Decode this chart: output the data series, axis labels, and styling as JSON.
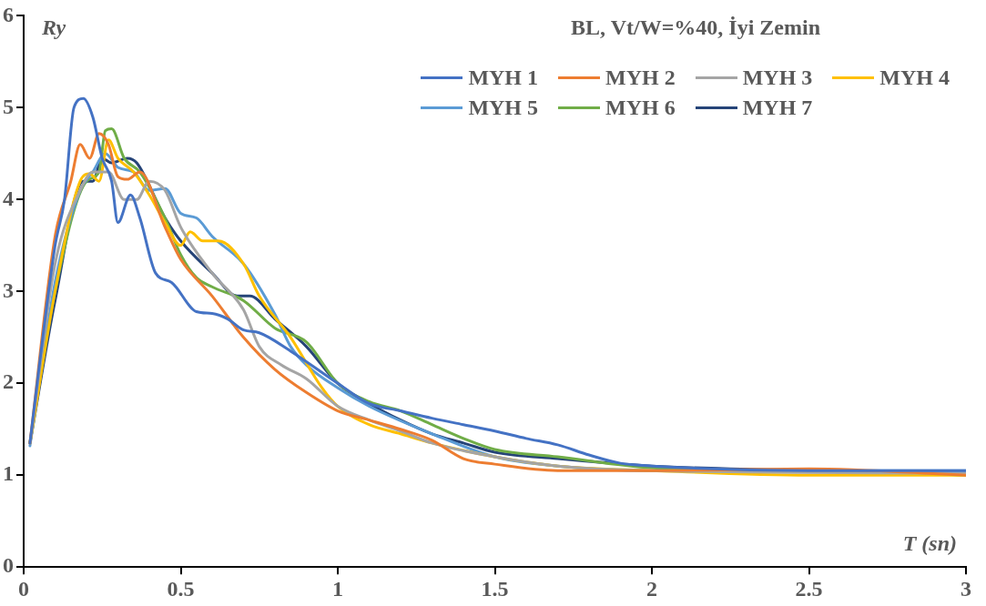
{
  "chart_data": {
    "type": "line",
    "title": "BL, Vt/W=%40, İyi Zemin",
    "xlabel": "T (sn)",
    "ylabel": "Ry",
    "xlim": [
      0,
      3
    ],
    "xticks": [
      0,
      0.5,
      1,
      1.5,
      2,
      2.5,
      3
    ],
    "ylim": [
      0,
      6
    ],
    "yticks": [
      0,
      1,
      2,
      3,
      4,
      5,
      6
    ],
    "grid": false,
    "legend": "top right",
    "marker": "none",
    "line_style": "solid",
    "series": [
      {
        "name": "MYH 1",
        "color": "#4472c4",
        "x": [
          0.02,
          0.05,
          0.1,
          0.13,
          0.16,
          0.19,
          0.22,
          0.25,
          0.28,
          0.3,
          0.34,
          0.37,
          0.42,
          0.47,
          0.55,
          0.6,
          0.65,
          0.7,
          0.75,
          0.85,
          1.0,
          1.1,
          1.2,
          1.3,
          1.4,
          1.5,
          1.6,
          1.7,
          1.8,
          1.9,
          2.0,
          2.5,
          3.0
        ],
        "values": [
          1.35,
          2.2,
          3.5,
          4.0,
          5.0,
          5.1,
          4.9,
          4.45,
          4.2,
          3.75,
          4.05,
          3.8,
          3.2,
          3.1,
          2.78,
          2.76,
          2.7,
          2.58,
          2.55,
          2.35,
          2.0,
          1.78,
          1.7,
          1.62,
          1.55,
          1.48,
          1.4,
          1.33,
          1.22,
          1.13,
          1.1,
          1.05,
          1.05
        ]
      },
      {
        "name": "MYH 2",
        "color": "#ed7d31",
        "x": [
          0.02,
          0.1,
          0.15,
          0.18,
          0.21,
          0.24,
          0.27,
          0.3,
          0.33,
          0.37,
          0.45,
          0.5,
          0.6,
          0.7,
          0.8,
          0.9,
          1.0,
          1.1,
          1.2,
          1.3,
          1.4,
          1.5,
          1.7,
          2.0,
          2.5,
          3.0
        ],
        "values": [
          1.35,
          3.6,
          4.2,
          4.6,
          4.45,
          4.72,
          4.6,
          4.25,
          4.22,
          4.3,
          3.7,
          3.35,
          2.95,
          2.5,
          2.15,
          1.9,
          1.7,
          1.6,
          1.5,
          1.38,
          1.18,
          1.12,
          1.05,
          1.05,
          1.07,
          1.0
        ]
      },
      {
        "name": "MYH 3",
        "color": "#a5a5a5",
        "x": [
          0.02,
          0.1,
          0.18,
          0.22,
          0.27,
          0.32,
          0.36,
          0.4,
          0.45,
          0.5,
          0.6,
          0.7,
          0.75,
          0.82,
          0.9,
          1.0,
          1.1,
          1.2,
          1.3,
          1.5,
          1.7,
          2.0,
          3.0
        ],
        "values": [
          1.35,
          3.3,
          4.1,
          4.3,
          4.3,
          4.0,
          4.0,
          4.2,
          4.1,
          3.7,
          3.2,
          2.8,
          2.4,
          2.2,
          2.05,
          1.75,
          1.6,
          1.48,
          1.35,
          1.2,
          1.1,
          1.05,
          1.02
        ]
      },
      {
        "name": "MYH 4",
        "color": "#ffc000",
        "x": [
          0.02,
          0.1,
          0.18,
          0.21,
          0.24,
          0.27,
          0.3,
          0.35,
          0.4,
          0.45,
          0.5,
          0.53,
          0.57,
          0.62,
          0.7,
          0.75,
          0.85,
          0.95,
          1.0,
          1.1,
          1.2,
          1.3,
          1.5,
          1.7,
          2.0,
          2.5,
          3.0
        ],
        "values": [
          1.35,
          3.0,
          4.2,
          4.28,
          4.2,
          4.65,
          4.45,
          4.3,
          4.05,
          3.75,
          3.5,
          3.65,
          3.55,
          3.55,
          3.3,
          2.95,
          2.5,
          1.95,
          1.75,
          1.55,
          1.45,
          1.35,
          1.2,
          1.1,
          1.05,
          1.0,
          1.0
        ]
      },
      {
        "name": "MYH 5",
        "color": "#5b9bd5",
        "x": [
          0.02,
          0.1,
          0.18,
          0.22,
          0.26,
          0.3,
          0.35,
          0.4,
          0.45,
          0.5,
          0.55,
          0.6,
          0.7,
          0.8,
          0.85,
          0.9,
          1.0,
          1.1,
          1.3,
          1.5,
          1.7,
          2.0,
          3.0
        ],
        "values": [
          1.32,
          3.1,
          4.1,
          4.3,
          4.5,
          4.35,
          4.3,
          4.1,
          4.12,
          3.85,
          3.8,
          3.6,
          3.3,
          2.75,
          2.4,
          2.2,
          1.95,
          1.75,
          1.45,
          1.2,
          1.1,
          1.05,
          1.05
        ]
      },
      {
        "name": "MYH 6",
        "color": "#70ad47",
        "x": [
          0.02,
          0.1,
          0.2,
          0.24,
          0.26,
          0.28,
          0.32,
          0.37,
          0.45,
          0.5,
          0.55,
          0.6,
          0.7,
          0.8,
          0.9,
          1.0,
          1.1,
          1.2,
          1.3,
          1.4,
          1.5,
          1.7,
          2.0,
          2.5,
          3.0
        ],
        "values": [
          1.35,
          3.0,
          4.2,
          4.3,
          4.75,
          4.77,
          4.45,
          4.3,
          3.8,
          3.4,
          3.15,
          3.05,
          2.9,
          2.6,
          2.45,
          2.0,
          1.8,
          1.7,
          1.55,
          1.4,
          1.28,
          1.2,
          1.08,
          1.05,
          1.0
        ]
      },
      {
        "name": "MYH 7",
        "color": "#264478",
        "x": [
          0.02,
          0.1,
          0.19,
          0.22,
          0.25,
          0.28,
          0.33,
          0.36,
          0.45,
          0.5,
          0.6,
          0.68,
          0.72,
          0.8,
          0.9,
          1.0,
          1.1,
          1.2,
          1.3,
          1.4,
          1.5,
          1.7,
          2.0,
          2.5,
          3.0
        ],
        "values": [
          1.35,
          2.9,
          4.2,
          4.2,
          4.45,
          4.4,
          4.45,
          4.4,
          3.8,
          3.55,
          3.2,
          2.95,
          2.95,
          2.7,
          2.4,
          2.0,
          1.78,
          1.6,
          1.45,
          1.35,
          1.25,
          1.18,
          1.1,
          1.05,
          1.02
        ]
      }
    ]
  }
}
